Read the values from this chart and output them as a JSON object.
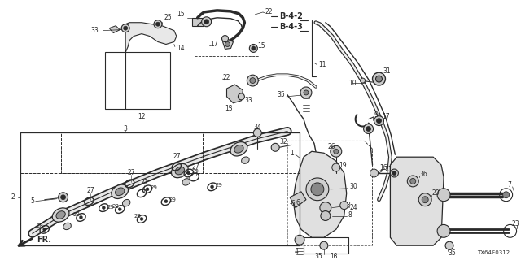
{
  "bg_color": "#ffffff",
  "diagram_color": "#2a2a2a",
  "ref_code": "TX64E0312",
  "bold_labels": [
    "B-4-2",
    "B-4-3"
  ],
  "figsize": [
    6.4,
    3.2
  ],
  "dpi": 100,
  "font_size_labels": 5.5,
  "font_size_bold": 7.0,
  "font_size_ref": 5.0
}
